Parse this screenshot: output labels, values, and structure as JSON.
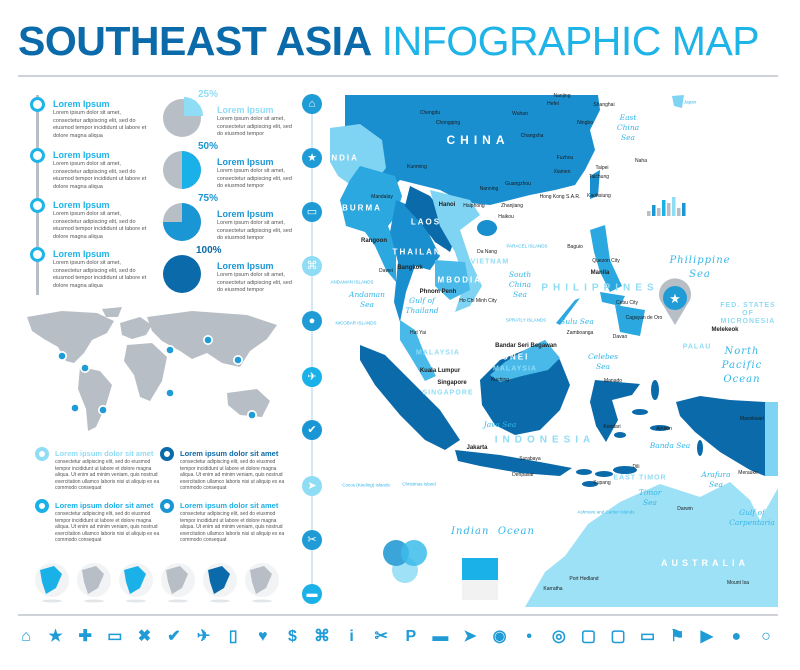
{
  "header": {
    "title_bold": "SOUTHEAST ASIA",
    "title_light": "INFOGRAPHIC MAP"
  },
  "timeline": [
    {
      "title": "Lorem Ipsum",
      "body": "Lorem ipsum dolor sit amet, consectetur adipiscing elit, sed do eiusmod tempor incididunt ut labore et dolore magna aliqua"
    },
    {
      "title": "Lorem Ipsum",
      "body": "Lorem ipsum dolor sit amet, consectetur adipiscing elit, sed do eiusmod tempor incididunt ut labore et dolore magna aliqua"
    },
    {
      "title": "Lorem Ipsum",
      "body": "Lorem ipsum dolor sit amet, consectetur adipiscing elit, sed do eiusmod tempor incididunt ut labore et dolore magna aliqua"
    },
    {
      "title": "Lorem Ipsum",
      "body": "Lorem ipsum dolor sit amet, consectetur adipiscing elit, sed do eiusmod tempor incididunt ut labore et dolore magna aliqua"
    }
  ],
  "pies": [
    {
      "value": 25,
      "label": "25%",
      "title": "Lorem Ipsum",
      "body": "Lorem ipsum dolor sit amet, consectetur adipiscing elit, sed do eiusmod tempor",
      "color": "#8fdcf5"
    },
    {
      "value": 50,
      "label": "50%",
      "title": "Lorem Ipsum",
      "body": "Lorem ipsum dolor sit amet, consectetur adipiscing elit, sed do eiusmod tempor",
      "color": "#1ab0e8"
    },
    {
      "value": 75,
      "label": "75%",
      "title": "Lorem Ipsum",
      "body": "Lorem ipsum dolor sit amet, consectetur adipiscing elit, sed do eiusmod tempor",
      "color": "#1996d3"
    },
    {
      "value": 100,
      "label": "100%",
      "title": "Lorem Ipsum",
      "body": "Lorem ipsum dolor sit amet, consectetur adipiscing elit, sed do eiusmod tempor",
      "color": "#0b6aa9"
    }
  ],
  "blocks": [
    {
      "title": "Lorem ipsum dolor sit amet",
      "body": "consectetur adipiscing elit, sed do eiusmod tempor incididunt ut labore et dolore magna aliqua. Ut enim ad minim veniam, quis nostrud exercitation ullamco laboris nisi ut aliquip ex ea commodo consequat",
      "color": "#8fdcf5"
    },
    {
      "title": "Lorem ipsum dolor sit amet",
      "body": "consectetur adipiscing elit, sed do eiusmod tempor incididunt ut labore et dolore magna aliqua. Ut enim ad minim veniam, quis nostrud exercitation ullamco laboris nisi ut aliquip ex ea commodo consequat",
      "color": "#0b6aa9"
    },
    {
      "title": "Lorem ipsum dolor sit amet",
      "body": "consectetur adipiscing elit, sed do eiusmod tempor incididunt ut labore et dolore magna aliqua. Ut enim ad minim veniam, quis nostrud exercitation ullamco laboris nisi ut aliquip ex ea commodo consequat",
      "color": "#1ab0e8"
    },
    {
      "title": "Lorem ipsum dolor sit amet",
      "body": "consectetur adipiscing elit, sed do eiusmod tempor incididunt ut labore et dolore magna aliqua. Ut enim ad minim veniam, quis nostrud exercitation ullamco laboris nisi ut aliquip ex ea commodo consequat",
      "color": "#1996d3"
    }
  ],
  "vertical_icons": [
    "home-icon",
    "star-icon",
    "car-icon",
    "command-icon",
    "map-pin-icon",
    "plane-icon",
    "check-icon",
    "send-icon",
    "fork-knife-icon",
    "bed-icon"
  ],
  "bottom_icons": [
    "home-icon",
    "star-icon",
    "plus-icon",
    "car-icon",
    "x-icon",
    "check-icon",
    "plane-icon",
    "fuel-icon",
    "heart-icon",
    "dollar-icon",
    "command-icon",
    "info-icon",
    "fork-knife-icon",
    "parking-icon",
    "bed-icon",
    "send-icon",
    "map-pin-icon",
    "map-pin-small-icon",
    "target-pin-icon",
    "square-pin-icon",
    "speech-bubble-icon",
    "wide-speech-bubble-icon",
    "flag-icon",
    "pennant-icon",
    "push-pin-icon",
    "search-pin-icon"
  ],
  "colors": {
    "dark": "#0b6aa9",
    "mid": "#1a8fd0",
    "bright": "#2ba8e0",
    "light": "#7fd3f3",
    "pale": "#9de1f7",
    "gray": "#b8bec6"
  },
  "map": {
    "labels": [
      {
        "text": "CHINA"
      },
      {
        "text": "INDIA"
      },
      {
        "text": "BURMA"
      },
      {
        "text": "LAOS"
      },
      {
        "text": "THAILAND"
      },
      {
        "text": "CAMBODIA"
      },
      {
        "text": "VIETNAM"
      },
      {
        "text": "MALAYSIA"
      },
      {
        "text": "MALAYSIA"
      },
      {
        "text": "BRUNEI"
      },
      {
        "text": "SINGAPORE"
      },
      {
        "text": "INDONESIA"
      },
      {
        "text": "PHILIPPINES"
      },
      {
        "text": "EAST TIMOR"
      },
      {
        "text": "PALAU"
      },
      {
        "text": "FED. STATES OF MICRONESIA"
      },
      {
        "text": "AUSTRALIA"
      },
      {
        "text": "Philippine\nSea"
      },
      {
        "text": "North\nPacific\nOcean"
      },
      {
        "text": "Indian  Ocean"
      },
      {
        "text": "South\nChina\nSea"
      },
      {
        "text": "East\nChina\nSea"
      },
      {
        "text": "Celebes\nSea"
      },
      {
        "text": "Andaman\nSea"
      },
      {
        "text": "Java Sea"
      },
      {
        "text": "Timor\nSea"
      },
      {
        "text": "Arafura\nSea"
      },
      {
        "text": "Gulf of\nCarpentaria"
      },
      {
        "text": "Gulf of\nThailand"
      },
      {
        "text": "Banda Sea"
      },
      {
        "text": "Sulu Sea"
      },
      {
        "text": "Chengdu"
      },
      {
        "text": "Chongqing"
      },
      {
        "text": "Wuhan"
      },
      {
        "text": "Nanjing"
      },
      {
        "text": "Hefei"
      },
      {
        "text": "Shanghai"
      },
      {
        "text": "Ningbo"
      },
      {
        "text": "Changsha"
      },
      {
        "text": "Kunming"
      },
      {
        "text": "Nanning"
      },
      {
        "text": "Guangzhou"
      },
      {
        "text": "Fuzhou"
      },
      {
        "text": "Xiamen"
      },
      {
        "text": "Hong Kong S.A.R."
      },
      {
        "text": "Zhanjiang"
      },
      {
        "text": "Haikou"
      },
      {
        "text": "Hanoi"
      },
      {
        "text": "Haiphong"
      },
      {
        "text": "Mandalay"
      },
      {
        "text": "Rangoon"
      },
      {
        "text": "Dawei"
      },
      {
        "text": "Bangkok"
      },
      {
        "text": "Phnom Penh"
      },
      {
        "text": "Ho Chi Minh City"
      },
      {
        "text": "Da Nang"
      },
      {
        "text": "Hat Yai"
      },
      {
        "text": "Kuala Lumpur"
      },
      {
        "text": "Singapore"
      },
      {
        "text": "Bandar Seri Begawan"
      },
      {
        "text": "Kuching"
      },
      {
        "text": "Jakarta"
      },
      {
        "text": "Surabaya"
      },
      {
        "text": "Denpasar"
      },
      {
        "text": "Kupang"
      },
      {
        "text": "Dili"
      },
      {
        "text": "Taipei"
      },
      {
        "text": "Taichung"
      },
      {
        "text": "Kaohsiung"
      },
      {
        "text": "Naha"
      },
      {
        "text": "Baguio"
      },
      {
        "text": "Quezon City"
      },
      {
        "text": "Manila"
      },
      {
        "text": "Cebu City"
      },
      {
        "text": "Cagayan de Oro"
      },
      {
        "text": "Zamboanga"
      },
      {
        "text": "Davao"
      },
      {
        "text": "Melekeok"
      },
      {
        "text": "Manado"
      },
      {
        "text": "Kendari"
      },
      {
        "text": "Ambon"
      },
      {
        "text": "Manokwari"
      },
      {
        "text": "Merauke"
      },
      {
        "text": "Darwin"
      },
      {
        "text": "Port Hedland"
      },
      {
        "text": "Karratha"
      },
      {
        "text": "Mount Isa"
      },
      {
        "text": "Japan"
      },
      {
        "text": "PARACEL ISLANDS"
      },
      {
        "text": "SPRATLY ISLANDS"
      },
      {
        "text": "Christmas Island"
      },
      {
        "text": "Cocos (Keeling) Islands"
      },
      {
        "text": "Ashmore and Cartier Islands"
      },
      {
        "text": "ANDAMAN ISLANDS"
      },
      {
        "text": "NICOBAR ISLANDS"
      }
    ]
  }
}
